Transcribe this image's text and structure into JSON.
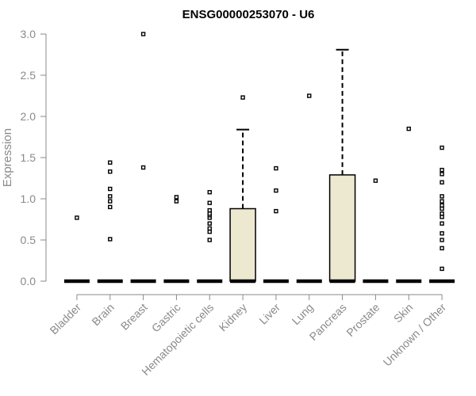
{
  "chart_data": {
    "type": "boxplot",
    "title": "ENSG00000253070 - U6",
    "xlabel": "",
    "ylabel": "Expression",
    "ylim": [
      0,
      3.0
    ],
    "yticks": [
      0.0,
      0.5,
      1.0,
      1.5,
      2.0,
      2.5,
      3.0
    ],
    "ytick_labels": [
      "0.0",
      "0.5",
      "1.0",
      "1.5",
      "2.0",
      "2.5",
      "3.0"
    ],
    "box_fill": "#ede8d0",
    "grid": false,
    "categories": [
      "Bladder",
      "Brain",
      "Breast",
      "Gastric",
      "Hematopoietic cells",
      "Kidney",
      "Liver",
      "Lung",
      "Pancreas",
      "Prostate",
      "Skin",
      "Unknown / Other"
    ],
    "boxes": [
      {
        "category": "Bladder",
        "q1": 0,
        "median": 0,
        "q3": 0,
        "whisker_low": 0,
        "whisker_high": 0,
        "outliers": [
          0.77
        ]
      },
      {
        "category": "Brain",
        "q1": 0,
        "median": 0,
        "q3": 0,
        "whisker_low": 0,
        "whisker_high": 0,
        "outliers": [
          0.51,
          0.9,
          0.97,
          1.03,
          1.12,
          1.33,
          1.44
        ]
      },
      {
        "category": "Breast",
        "q1": 0,
        "median": 0,
        "q3": 0,
        "whisker_low": 0,
        "whisker_high": 0,
        "outliers": [
          1.38,
          3.0
        ]
      },
      {
        "category": "Gastric",
        "q1": 0,
        "median": 0,
        "q3": 0,
        "whisker_low": 0,
        "whisker_high": 0,
        "outliers": [
          0.97,
          1.02
        ]
      },
      {
        "category": "Hematopoietic cells",
        "q1": 0,
        "median": 0,
        "q3": 0,
        "whisker_low": 0,
        "whisker_high": 0,
        "outliers": [
          0.5,
          0.6,
          0.64,
          0.7,
          0.77,
          0.8,
          0.82,
          0.86,
          0.95,
          1.08
        ]
      },
      {
        "category": "Kidney",
        "q1": 0,
        "median": 0,
        "q3": 0.88,
        "whisker_low": 0,
        "whisker_high": 1.84,
        "outliers": [
          2.23
        ]
      },
      {
        "category": "Liver",
        "q1": 0,
        "median": 0,
        "q3": 0,
        "whisker_low": 0,
        "whisker_high": 0,
        "outliers": [
          0.85,
          1.1,
          1.37
        ]
      },
      {
        "category": "Lung",
        "q1": 0,
        "median": 0,
        "q3": 0,
        "whisker_low": 0,
        "whisker_high": 0,
        "outliers": [
          2.25
        ]
      },
      {
        "category": "Pancreas",
        "q1": 0,
        "median": 0,
        "q3": 1.29,
        "whisker_low": 0,
        "whisker_high": 2.81,
        "outliers": []
      },
      {
        "category": "Prostate",
        "q1": 0,
        "median": 0,
        "q3": 0,
        "whisker_low": 0,
        "whisker_high": 0,
        "outliers": [
          1.22
        ]
      },
      {
        "category": "Skin",
        "q1": 0,
        "median": 0,
        "q3": 0,
        "whisker_low": 0,
        "whisker_high": 0,
        "outliers": [
          1.85
        ]
      },
      {
        "category": "Unknown / Other",
        "q1": 0,
        "median": 0,
        "q3": 0,
        "whisker_low": 0,
        "whisker_high": 0,
        "outliers": [
          0.15,
          0.4,
          0.5,
          0.58,
          0.7,
          0.78,
          0.82,
          0.88,
          0.92,
          0.97,
          1.03,
          1.2,
          1.3,
          1.35,
          1.62
        ]
      }
    ]
  }
}
